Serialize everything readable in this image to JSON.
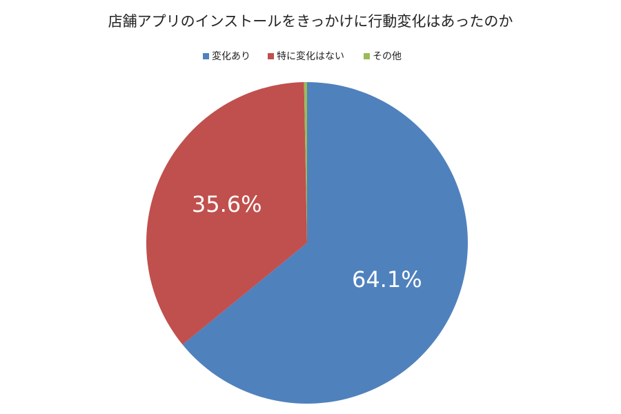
{
  "chart_data": {
    "type": "pie",
    "title": "店舗アプリのインストールをきっかけに行動変化はあったのか",
    "categories": [
      "変化あり",
      "特に変化はない",
      "その他"
    ],
    "values": [
      64.1,
      35.6,
      0.3
    ],
    "value_labels": [
      "64.1%",
      "35.6%",
      null
    ],
    "colors": [
      "#4f81bd",
      "#c0504d",
      "#9bbb59"
    ],
    "legend": "top"
  }
}
